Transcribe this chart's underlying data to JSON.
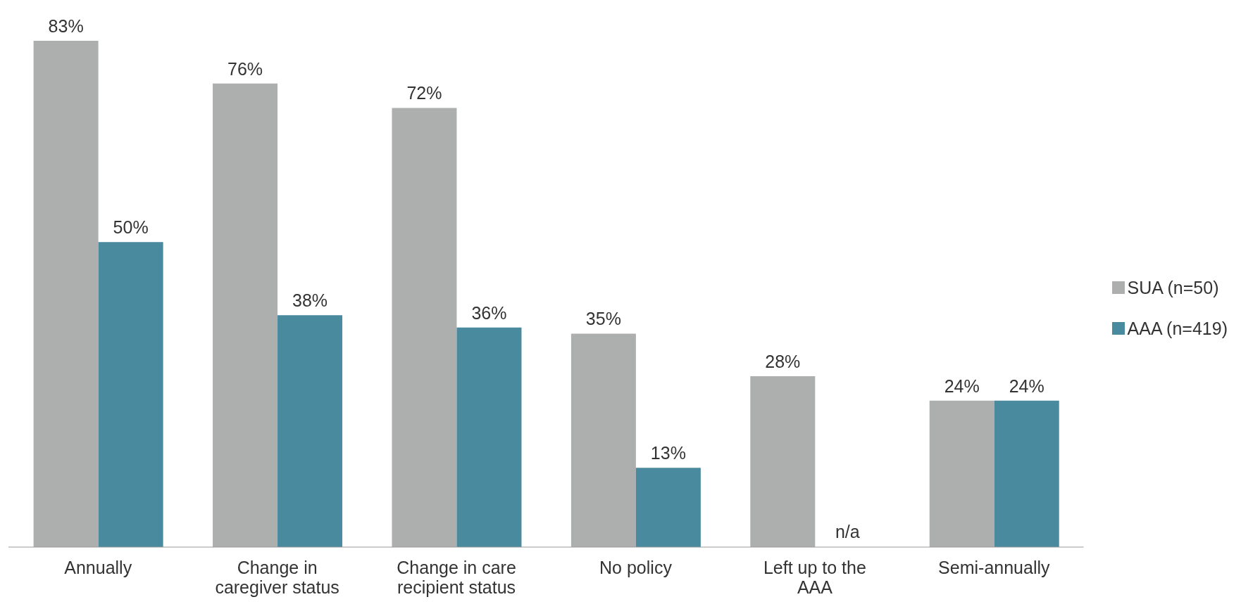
{
  "chart_data": {
    "type": "bar",
    "categories": [
      "Annually",
      "Change in caregiver status",
      "Change in care recipient status",
      "No policy",
      "Left up to the AAA",
      "Semi-annually"
    ],
    "series": [
      {
        "name": "SUA (n=50)",
        "color": "#adafae",
        "values": [
          83,
          76,
          72,
          35,
          28,
          24
        ],
        "value_labels": [
          "83%",
          "76%",
          "72%",
          "35%",
          "28%",
          "24%"
        ]
      },
      {
        "name": "AAA (n=419)",
        "color": "#4a8a9e",
        "values": [
          50,
          38,
          36,
          13,
          null,
          24
        ],
        "value_labels": [
          "50%",
          "38%",
          "36%",
          "13%",
          "n/a",
          "24%"
        ]
      }
    ],
    "legend": "right",
    "grid": false
  }
}
